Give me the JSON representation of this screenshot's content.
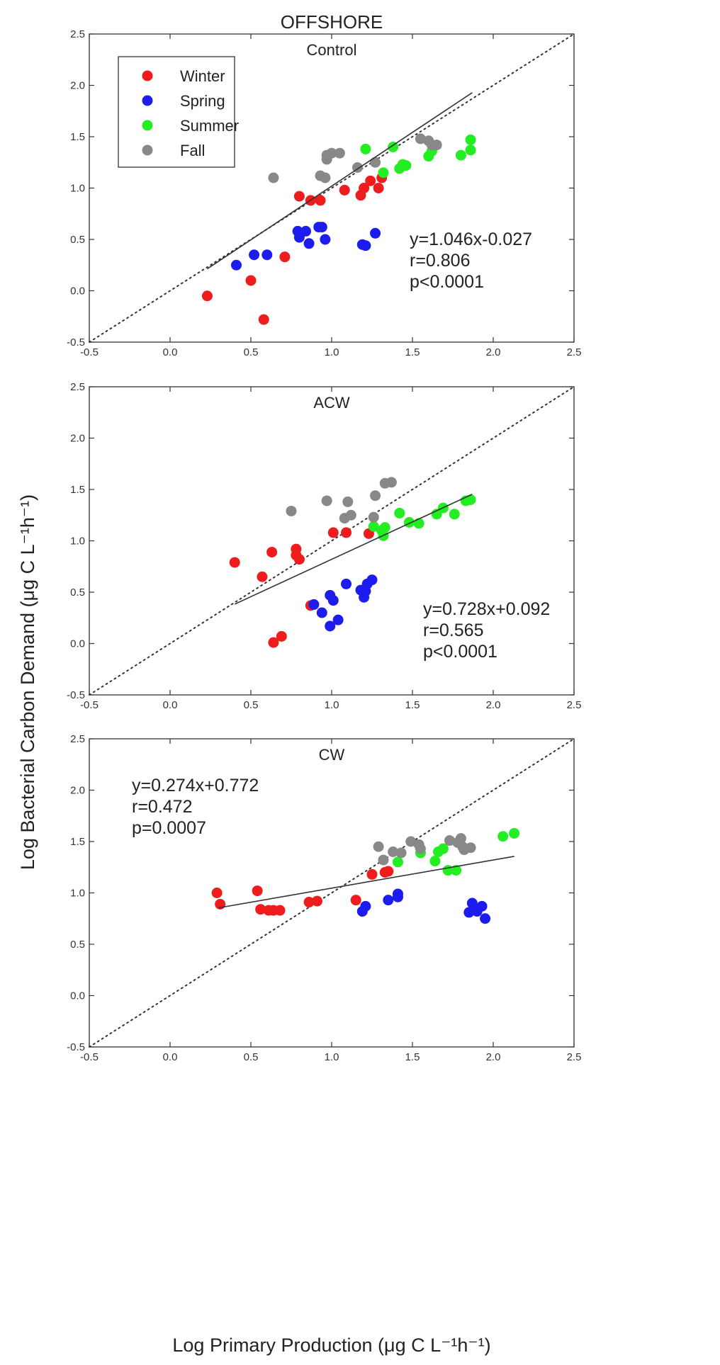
{
  "title": "OFFSHORE",
  "xlabel": "Log Primary Production (μg C L⁻¹h⁻¹)",
  "ylabel": "Log Bacterial Carbon Demand (μg C L⁻¹h⁻¹)",
  "legend": [
    {
      "name": "Winter",
      "color": "#ee1c1c"
    },
    {
      "name": "Spring",
      "color": "#1c1cee"
    },
    {
      "name": "Summer",
      "color": "#22ee22"
    },
    {
      "name": "Fall",
      "color": "#888888"
    }
  ],
  "chart_data": [
    {
      "type": "scatter",
      "title": "Control",
      "xlim": [
        -0.5,
        2.5
      ],
      "ylim": [
        -0.5,
        2.5
      ],
      "xticks": [
        "-0.5",
        "0.0",
        "0.5",
        "1.0",
        "1.5",
        "2.0",
        "2.5"
      ],
      "yticks": [
        "-0.5",
        "0.0",
        "0.5",
        "1.0",
        "1.5",
        "2.0",
        "2.5"
      ],
      "legend_position": "top-left",
      "one_to_one_line": true,
      "regression": {
        "slope": 1.046,
        "intercept": -0.027,
        "x_range": [
          0.23,
          1.87
        ]
      },
      "stats": [
        "y=1.046x-0.027",
        "r=0.806",
        "p<0.0001"
      ],
      "series": [
        {
          "name": "Winter",
          "color": "#ee1c1c",
          "points": [
            [
              0.23,
              -0.05
            ],
            [
              0.5,
              0.1
            ],
            [
              0.58,
              -0.28
            ],
            [
              0.71,
              0.33
            ],
            [
              0.8,
              0.92
            ],
            [
              0.87,
              0.88
            ],
            [
              0.93,
              0.88
            ],
            [
              1.08,
              0.98
            ],
            [
              1.18,
              0.93
            ],
            [
              1.2,
              1.0
            ],
            [
              1.24,
              1.07
            ],
            [
              1.29,
              1.0
            ],
            [
              1.31,
              1.1
            ]
          ]
        },
        {
          "name": "Spring",
          "color": "#1c1cee",
          "points": [
            [
              0.41,
              0.25
            ],
            [
              0.52,
              0.35
            ],
            [
              0.6,
              0.35
            ],
            [
              0.79,
              0.58
            ],
            [
              0.8,
              0.52
            ],
            [
              0.84,
              0.58
            ],
            [
              0.86,
              0.46
            ],
            [
              0.92,
              0.62
            ],
            [
              0.94,
              0.62
            ],
            [
              0.96,
              0.5
            ],
            [
              1.19,
              0.45
            ],
            [
              1.21,
              0.44
            ],
            [
              1.27,
              0.56
            ]
          ]
        },
        {
          "name": "Summer",
          "color": "#22ee22",
          "points": [
            [
              1.21,
              1.38
            ],
            [
              1.32,
              1.15
            ],
            [
              1.38,
              1.4
            ],
            [
              1.42,
              1.19
            ],
            [
              1.44,
              1.23
            ],
            [
              1.46,
              1.22
            ],
            [
              1.6,
              1.31
            ],
            [
              1.62,
              1.36
            ],
            [
              1.8,
              1.32
            ],
            [
              1.86,
              1.37
            ],
            [
              1.86,
              1.47
            ]
          ]
        },
        {
          "name": "Fall",
          "color": "#888888",
          "points": [
            [
              0.64,
              1.1
            ],
            [
              0.93,
              1.12
            ],
            [
              0.96,
              1.1
            ],
            [
              0.97,
              1.32
            ],
            [
              0.97,
              1.28
            ],
            [
              1.0,
              1.34
            ],
            [
              1.05,
              1.34
            ],
            [
              1.16,
              1.2
            ],
            [
              1.27,
              1.25
            ],
            [
              1.55,
              1.48
            ],
            [
              1.6,
              1.46
            ],
            [
              1.62,
              1.42
            ],
            [
              1.65,
              1.42
            ]
          ]
        }
      ]
    },
    {
      "type": "scatter",
      "title": "ACW",
      "xlim": [
        -0.5,
        2.5
      ],
      "ylim": [
        -0.5,
        2.5
      ],
      "xticks": [
        "-0.5",
        "0.0",
        "0.5",
        "1.0",
        "1.5",
        "2.0",
        "2.5"
      ],
      "yticks": [
        "-0.5",
        "0.0",
        "0.5",
        "1.0",
        "1.5",
        "2.0",
        "2.5"
      ],
      "one_to_one_line": true,
      "regression": {
        "slope": 0.728,
        "intercept": 0.092,
        "x_range": [
          0.4,
          1.87
        ]
      },
      "stats": [
        "y=0.728x+0.092",
        "r=0.565",
        "p<0.0001"
      ],
      "series": [
        {
          "name": "Winter",
          "color": "#ee1c1c",
          "points": [
            [
              0.4,
              0.79
            ],
            [
              0.57,
              0.65
            ],
            [
              0.63,
              0.89
            ],
            [
              0.64,
              0.01
            ],
            [
              0.69,
              0.07
            ],
            [
              0.78,
              0.86
            ],
            [
              0.78,
              0.92
            ],
            [
              0.8,
              0.82
            ],
            [
              0.87,
              0.37
            ],
            [
              1.01,
              1.08
            ],
            [
              1.09,
              1.08
            ],
            [
              1.23,
              1.07
            ]
          ]
        },
        {
          "name": "Spring",
          "color": "#1c1cee",
          "points": [
            [
              0.89,
              0.38
            ],
            [
              0.94,
              0.3
            ],
            [
              0.99,
              0.47
            ],
            [
              0.99,
              0.17
            ],
            [
              1.01,
              0.42
            ],
            [
              1.04,
              0.23
            ],
            [
              1.09,
              0.58
            ],
            [
              1.18,
              0.52
            ],
            [
              1.2,
              0.45
            ],
            [
              1.21,
              0.51
            ],
            [
              1.22,
              0.58
            ],
            [
              1.25,
              0.62
            ]
          ]
        },
        {
          "name": "Summer",
          "color": "#22ee22",
          "points": [
            [
              1.26,
              1.14
            ],
            [
              1.31,
              1.1
            ],
            [
              1.32,
              1.05
            ],
            [
              1.33,
              1.13
            ],
            [
              1.42,
              1.27
            ],
            [
              1.48,
              1.18
            ],
            [
              1.54,
              1.17
            ],
            [
              1.65,
              1.26
            ],
            [
              1.69,
              1.32
            ],
            [
              1.76,
              1.26
            ],
            [
              1.83,
              1.39
            ],
            [
              1.86,
              1.4
            ]
          ]
        },
        {
          "name": "Fall",
          "color": "#888888",
          "points": [
            [
              0.75,
              1.29
            ],
            [
              0.97,
              1.39
            ],
            [
              1.08,
              1.22
            ],
            [
              1.1,
              1.38
            ],
            [
              1.12,
              1.25
            ],
            [
              1.26,
              1.23
            ],
            [
              1.27,
              1.44
            ],
            [
              1.33,
              1.56
            ],
            [
              1.37,
              1.57
            ]
          ]
        }
      ]
    },
    {
      "type": "scatter",
      "title": "CW",
      "xlim": [
        -0.5,
        2.5
      ],
      "ylim": [
        -0.5,
        2.5
      ],
      "xticks": [
        "-0.5",
        "0.0",
        "0.5",
        "1.0",
        "1.5",
        "2.0",
        "2.5"
      ],
      "yticks": [
        "-0.5",
        "0.0",
        "0.5",
        "1.0",
        "1.5",
        "2.0",
        "2.5"
      ],
      "one_to_one_line": true,
      "regression": {
        "slope": 0.274,
        "intercept": 0.772,
        "x_range": [
          0.3,
          2.13
        ]
      },
      "stats": [
        "y=0.274x+0.772",
        "r=0.472",
        "p=0.0007"
      ],
      "series": [
        {
          "name": "Winter",
          "color": "#ee1c1c",
          "points": [
            [
              0.29,
              1.0
            ],
            [
              0.31,
              0.89
            ],
            [
              0.54,
              1.02
            ],
            [
              0.56,
              0.84
            ],
            [
              0.61,
              0.83
            ],
            [
              0.64,
              0.83
            ],
            [
              0.68,
              0.83
            ],
            [
              0.86,
              0.91
            ],
            [
              0.91,
              0.92
            ],
            [
              1.15,
              0.93
            ],
            [
              1.25,
              1.18
            ],
            [
              1.33,
              1.2
            ],
            [
              1.35,
              1.21
            ]
          ]
        },
        {
          "name": "Spring",
          "color": "#1c1cee",
          "points": [
            [
              1.19,
              0.82
            ],
            [
              1.21,
              0.87
            ],
            [
              1.35,
              0.93
            ],
            [
              1.41,
              0.96
            ],
            [
              1.41,
              0.99
            ],
            [
              1.85,
              0.81
            ],
            [
              1.87,
              0.9
            ],
            [
              1.9,
              0.82
            ],
            [
              1.93,
              0.87
            ],
            [
              1.95,
              0.75
            ]
          ]
        },
        {
          "name": "Summer",
          "color": "#22ee22",
          "points": [
            [
              1.41,
              1.3
            ],
            [
              1.55,
              1.39
            ],
            [
              1.64,
              1.31
            ],
            [
              1.66,
              1.4
            ],
            [
              1.69,
              1.43
            ],
            [
              1.72,
              1.22
            ],
            [
              1.77,
              1.22
            ],
            [
              2.06,
              1.55
            ],
            [
              2.13,
              1.58
            ]
          ]
        },
        {
          "name": "Fall",
          "color": "#888888",
          "points": [
            [
              1.29,
              1.45
            ],
            [
              1.32,
              1.32
            ],
            [
              1.38,
              1.4
            ],
            [
              1.43,
              1.39
            ],
            [
              1.49,
              1.5
            ],
            [
              1.54,
              1.47
            ],
            [
              1.55,
              1.43
            ],
            [
              1.73,
              1.51
            ],
            [
              1.78,
              1.49
            ],
            [
              1.8,
              1.53
            ],
            [
              1.81,
              1.45
            ],
            [
              1.82,
              1.42
            ],
            [
              1.86,
              1.44
            ]
          ]
        }
      ]
    }
  ]
}
